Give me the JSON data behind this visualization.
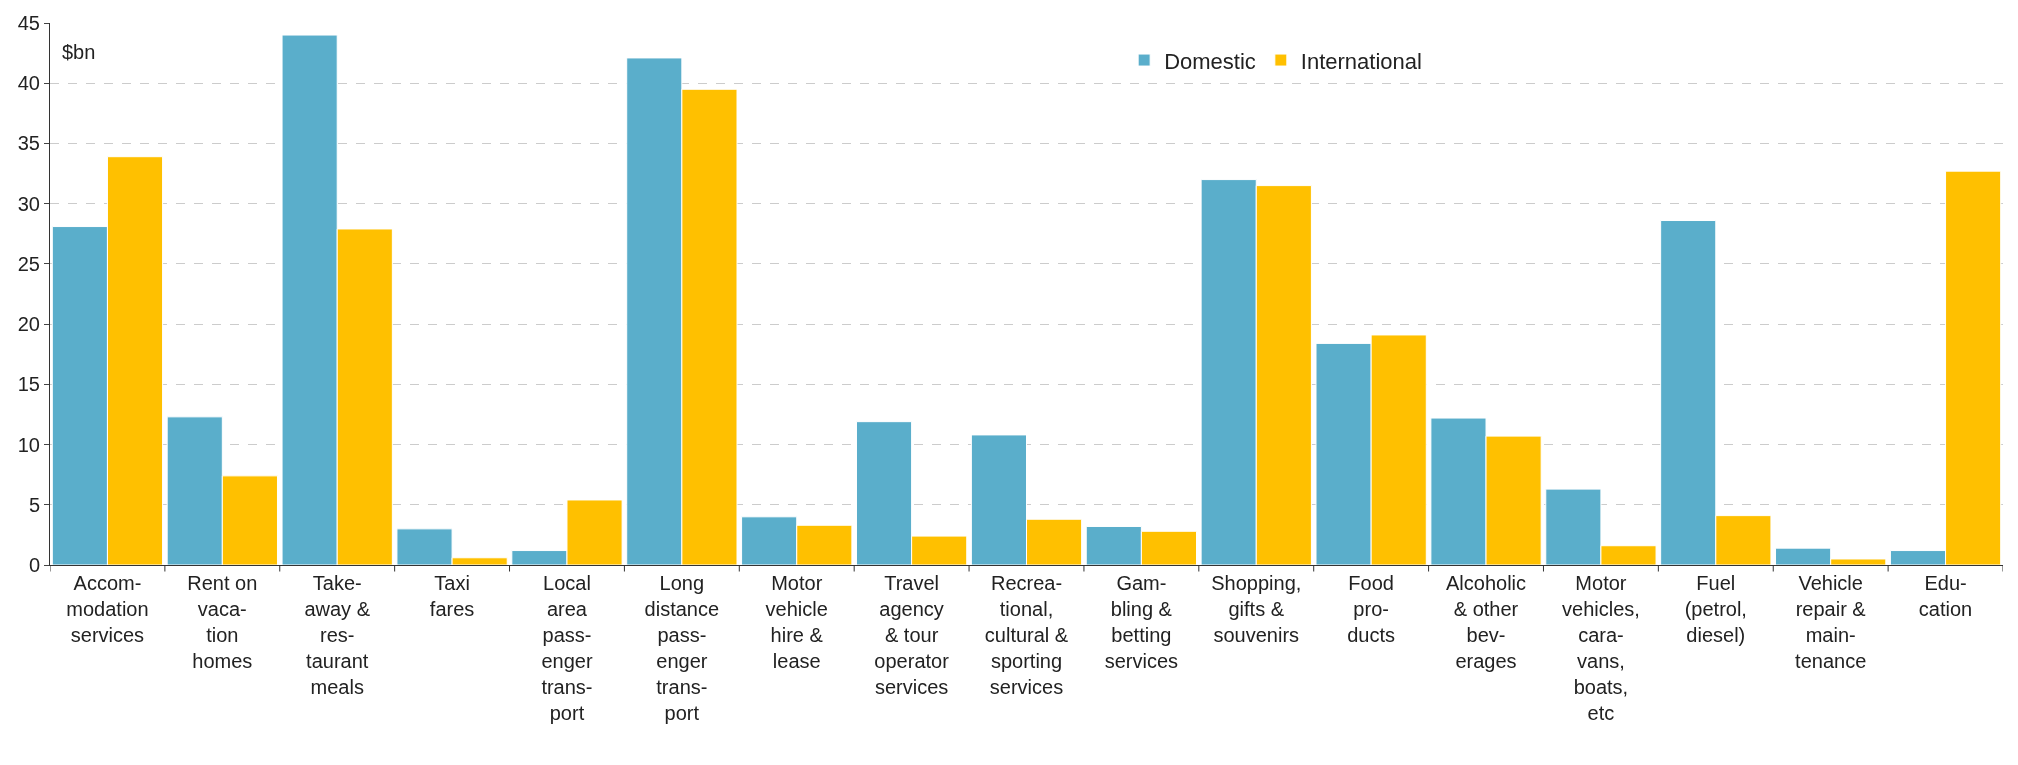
{
  "chart_data": {
    "type": "bar",
    "ylabel": "$bn",
    "categories": [
      "Accom-\nmodation\nservices",
      "Rent on\nvaca-\ntion\nhomes",
      "Take-\naway &\nres-\ntaurant\nmeals",
      "Taxi\nfares",
      "Local\narea\npass-\nenger\ntrans-\nport",
      "Long\ndistance\npass-\nenger\ntrans-\nport",
      "Motor\nvehicle\nhire &\nlease",
      "Travel\nagency\n& tour\noperator\nservices",
      "Recrea-\ntional,\ncultural &\nsporting\nservices",
      "Gam-\nbling &\nbetting\nservices",
      "Shopping,\ngifts &\nsouvenirs",
      "Food\npro-\nducts",
      "Alcoholic\n& other\nbev-\nerages",
      "Motor\nvehicles,\ncara-\nvans,\nboats,\netc",
      "Fuel\n(petrol,\ndiesel)",
      "Vehicle\nrepair &\nmain-\ntenance",
      "Edu-\ncation"
    ],
    "series": [
      {
        "name": "Domestic",
        "color": "#5aaecb",
        "values": [
          28.1,
          12.3,
          44.0,
          3.0,
          1.2,
          42.1,
          4.0,
          11.9,
          10.8,
          3.2,
          32.0,
          18.4,
          12.2,
          6.3,
          28.6,
          1.4,
          1.2
        ]
      },
      {
        "name": "International",
        "color": "#ffc000",
        "values": [
          33.9,
          7.4,
          27.9,
          0.6,
          5.4,
          39.5,
          3.3,
          2.4,
          3.8,
          2.8,
          31.5,
          19.1,
          10.7,
          1.6,
          4.1,
          0.5,
          32.7
        ]
      }
    ],
    "ylim": [
      0,
      45
    ],
    "yticks": [
      0,
      5,
      10,
      15,
      20,
      25,
      30,
      35,
      40,
      45
    ],
    "grid": "y",
    "legend": "top"
  }
}
